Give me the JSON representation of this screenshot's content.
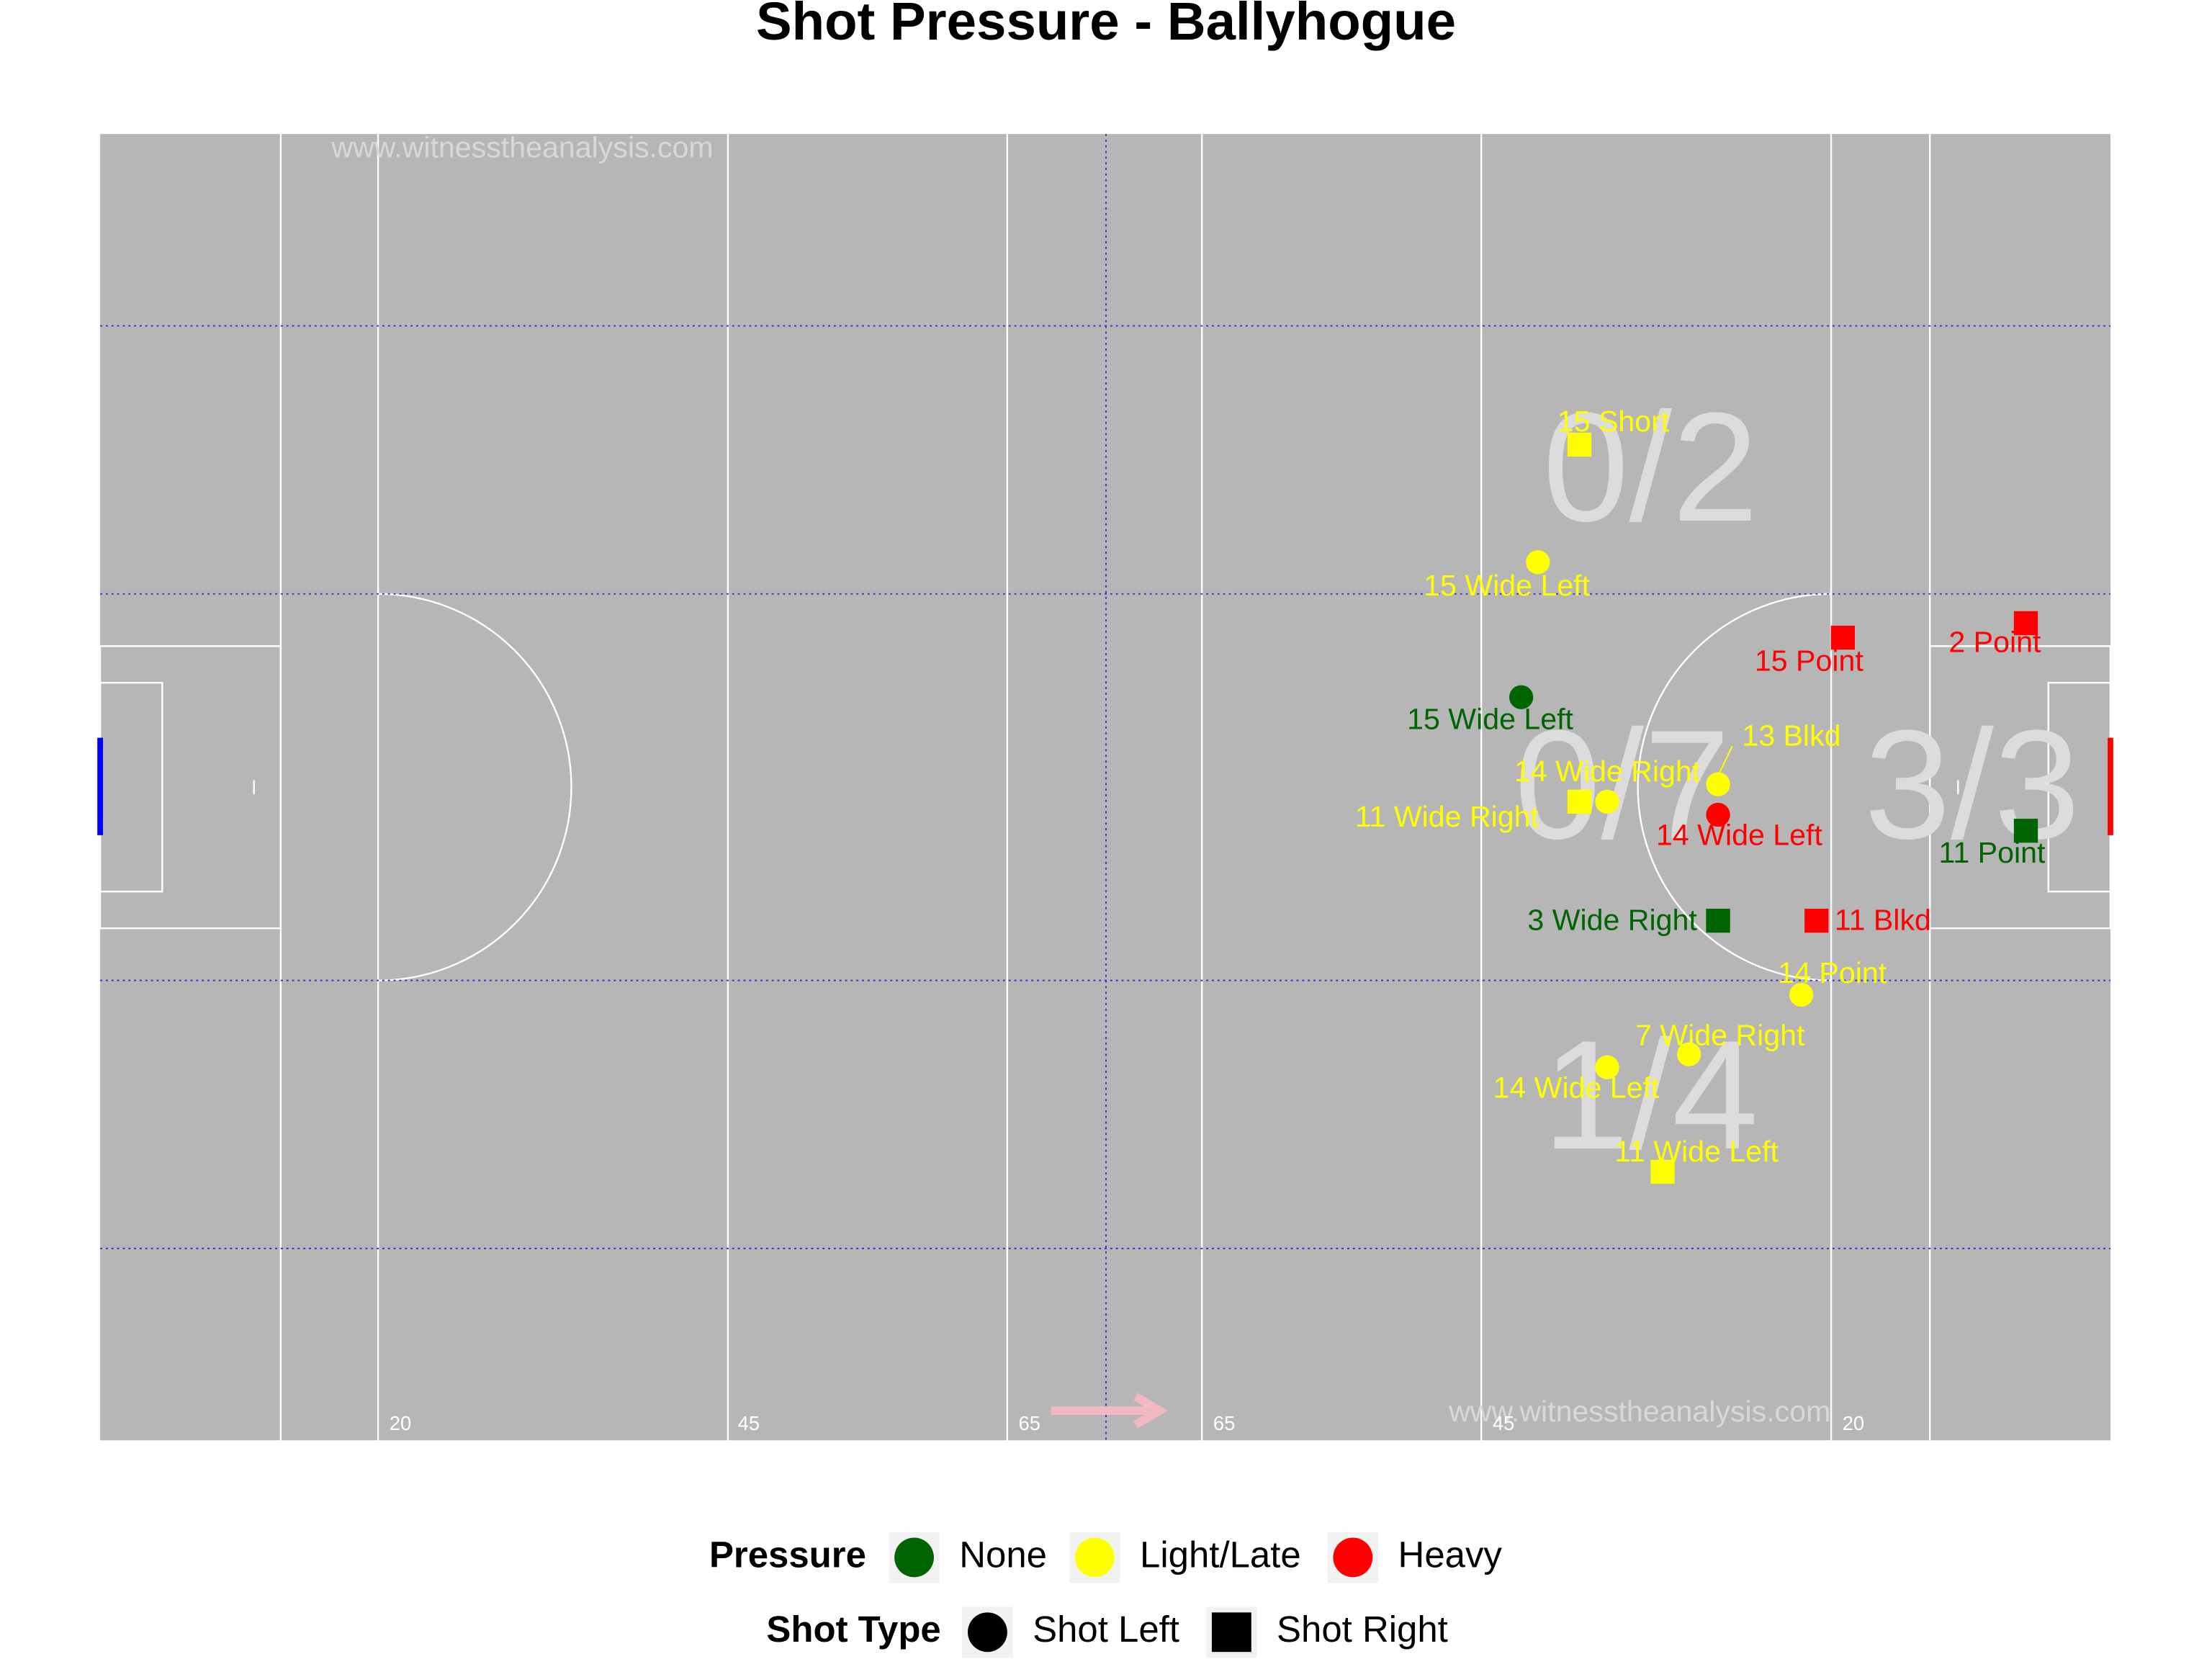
{
  "chart_data": {
    "type": "scatter",
    "title": "Shot Pressure - Ballyhogue",
    "watermarks": [
      "www.witnesstheanalysis.com",
      "www.witnesstheanalysis.com"
    ],
    "pitch_labels": [
      "20",
      "45",
      "65",
      "65",
      "45",
      "20"
    ],
    "zone_counts": [
      "0/2",
      "0/7",
      "3/3",
      "1/4"
    ],
    "xlim": [
      0,
      145
    ],
    "ylim": [
      0,
      90
    ],
    "legend": {
      "pressure_title": "Pressure",
      "pressure": [
        {
          "name": "None",
          "color": "#006400"
        },
        {
          "name": "Light/Late",
          "color": "#ffff00"
        },
        {
          "name": "Heavy",
          "color": "#ff0000"
        }
      ],
      "shot_type_title": "Shot Type",
      "shot_type": [
        "Shot Left",
        "Shot Right"
      ]
    },
    "points": [
      {
        "label": "15 Short",
        "pressure": 1,
        "shot_type": 1,
        "x": 106.7,
        "y": 21.4
      },
      {
        "label": "15 Wide Left",
        "pressure": 1,
        "shot_type": 0,
        "x": 103.7,
        "y": 29.5
      },
      {
        "label": "15 Point",
        "pressure": 2,
        "shot_type": 1,
        "x": 125.7,
        "y": 34.7
      },
      {
        "label": "2 Point",
        "pressure": 2,
        "shot_type": 1,
        "x": 138.9,
        "y": 33.7
      },
      {
        "label": "15 Wide Left",
        "pressure": 0,
        "shot_type": 0,
        "x": 102.5,
        "y": 38.8
      },
      {
        "label": "13 Blkd",
        "pressure": 1,
        "shot_type": 0,
        "x": 116.7,
        "y": 44.8
      },
      {
        "label": "14 Wide Right",
        "pressure": 1,
        "shot_type": 0,
        "x": 108.7,
        "y": 46.0
      },
      {
        "label": "11 Wide Right",
        "pressure": 1,
        "shot_type": 1,
        "x": 106.7,
        "y": 46.0
      },
      {
        "label": "14 Wide Left",
        "pressure": 2,
        "shot_type": 0,
        "x": 116.7,
        "y": 46.9
      },
      {
        "label": "11 Point",
        "pressure": 0,
        "shot_type": 1,
        "x": 138.9,
        "y": 48.0
      },
      {
        "label": "3 Wide Right",
        "pressure": 0,
        "shot_type": 1,
        "x": 116.7,
        "y": 54.2
      },
      {
        "label": "11 Blkd",
        "pressure": 2,
        "shot_type": 1,
        "x": 123.8,
        "y": 54.2
      },
      {
        "label": "14 Point",
        "pressure": 1,
        "shot_type": 0,
        "x": 122.7,
        "y": 59.3
      },
      {
        "label": "7 Wide Right",
        "pressure": 1,
        "shot_type": 0,
        "x": 114.6,
        "y": 63.4
      },
      {
        "label": "14 Wide Left",
        "pressure": 1,
        "shot_type": 0,
        "x": 108.7,
        "y": 64.3
      },
      {
        "label": "11 Wide Left",
        "pressure": 1,
        "shot_type": 1,
        "x": 112.7,
        "y": 71.5
      }
    ]
  }
}
